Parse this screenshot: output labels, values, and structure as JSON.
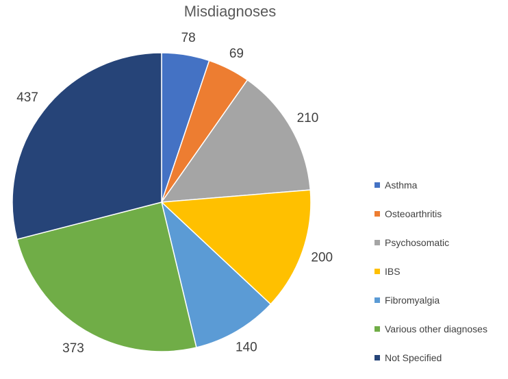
{
  "chart_data": {
    "type": "pie",
    "title": "Misdiagnoses",
    "slices": [
      {
        "label": "Asthma",
        "value": 78,
        "color": "#4472C4"
      },
      {
        "label": "Osteoarthritis",
        "value": 69,
        "color": "#ED7D31"
      },
      {
        "label": "Psychosomatic",
        "value": 210,
        "color": "#A5A5A5"
      },
      {
        "label": "IBS",
        "value": 200,
        "color": "#FFC000"
      },
      {
        "label": "Fibromyalgia",
        "value": 140,
        "color": "#5B9BD5"
      },
      {
        "label": "Various other diagnoses",
        "value": 373,
        "color": "#70AD47"
      },
      {
        "label": "Not Specified",
        "value": 437,
        "color": "#264478"
      }
    ],
    "start_angle_deg": 0,
    "direction": "clockwise",
    "legend_position": "right",
    "show_data_labels": true
  }
}
